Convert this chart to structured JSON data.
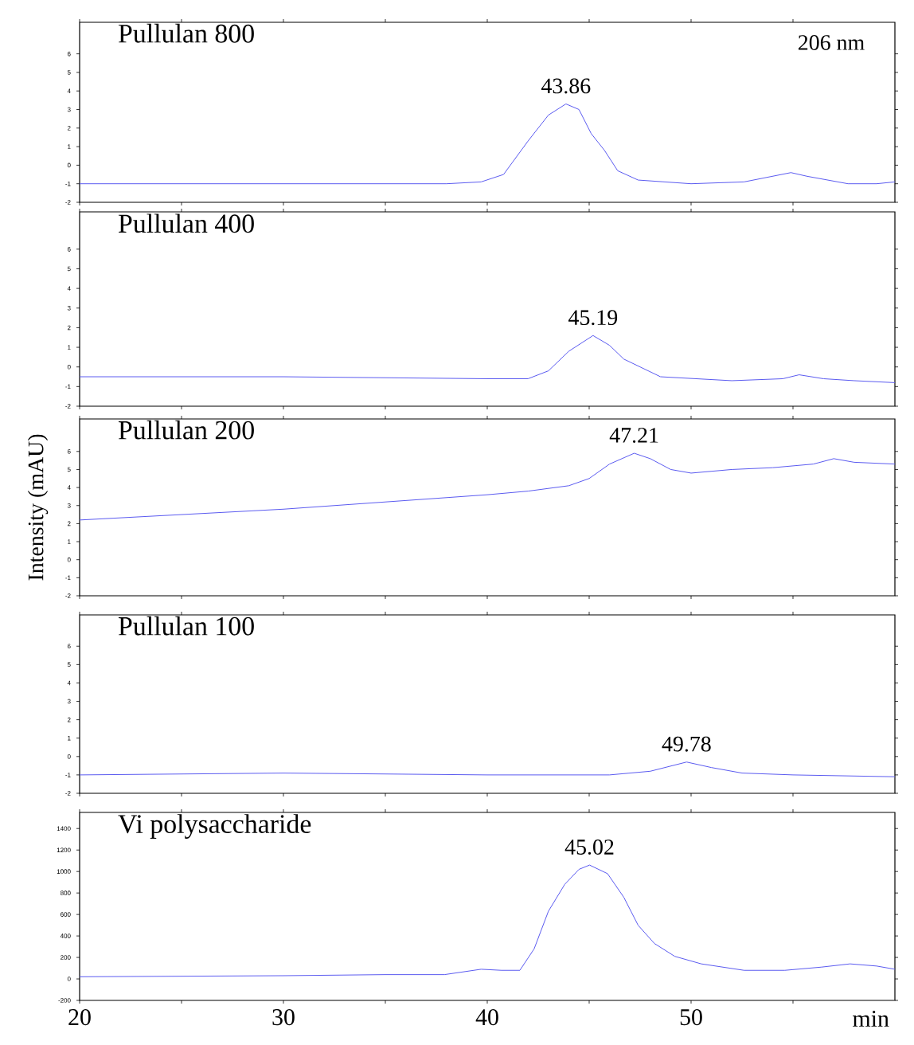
{
  "chart_data": [
    {
      "type": "line",
      "title": "Pullulan 800",
      "annotations": [
        {
          "text": "43.86",
          "x": 43.86,
          "y": 3.3
        },
        "206 nm"
      ],
      "xlim": [
        20,
        60
      ],
      "ylim": [
        -2,
        7.7
      ],
      "tick_labels": "y",
      "xticks": [
        {
          "value": 20,
          "label": null
        },
        {
          "value": 25,
          "label": null
        },
        {
          "value": 30,
          "label": null
        },
        {
          "value": 35,
          "label": null
        },
        {
          "value": 40,
          "label": null
        },
        {
          "value": 45,
          "label": null
        },
        {
          "value": 50,
          "label": null
        },
        {
          "value": 55,
          "label": null
        }
      ],
      "yticks": [
        -2,
        -1,
        0,
        1,
        2,
        3,
        4,
        5,
        6
      ],
      "x": [
        20,
        30,
        38,
        39.7,
        40.8,
        42.0,
        43.0,
        43.86,
        44.5,
        45.1,
        45.75,
        46.4,
        47.4,
        50,
        52.6,
        54.9,
        55.7,
        57.7,
        59.1,
        60
      ],
      "series": [
        {
          "color": "#5a5af0",
          "values": [
            -1.0,
            -1.0,
            -1.0,
            -0.9,
            -0.5,
            1.3,
            2.7,
            3.3,
            3.0,
            1.7,
            0.8,
            -0.3,
            -0.8,
            -1.0,
            -0.9,
            -0.4,
            -0.6,
            -1.0,
            -1.0,
            -0.9
          ]
        }
      ]
    },
    {
      "type": "line",
      "title": "Pullulan 400",
      "annotations": [
        {
          "text": "45.19",
          "x": 45.19,
          "y": 1.6
        }
      ],
      "xlim": [
        20,
        60
      ],
      "ylim": [
        -2,
        7.9
      ],
      "tick_labels": "y",
      "xticks": [
        {
          "value": 20,
          "label": null
        },
        {
          "value": 25,
          "label": null
        },
        {
          "value": 30,
          "label": null
        },
        {
          "value": 35,
          "label": null
        },
        {
          "value": 40,
          "label": null
        },
        {
          "value": 45,
          "label": null
        },
        {
          "value": 50,
          "label": null
        },
        {
          "value": 55,
          "label": null
        }
      ],
      "yticks": [
        -2,
        -1,
        0,
        1,
        2,
        3,
        4,
        5,
        6
      ],
      "x": [
        20,
        30,
        40,
        42,
        43,
        44,
        45.19,
        46,
        46.7,
        47.5,
        48.5,
        52,
        54.5,
        55.3,
        56.5,
        58,
        60
      ],
      "series": [
        {
          "color": "#5a5af0",
          "values": [
            -0.5,
            -0.5,
            -0.6,
            -0.6,
            -0.2,
            0.8,
            1.6,
            1.1,
            0.4,
            0.0,
            -0.5,
            -0.7,
            -0.6,
            -0.4,
            -0.6,
            -0.7,
            -0.8
          ]
        }
      ]
    },
    {
      "type": "line",
      "title": "Pullulan 200",
      "ylabel": "Intensity (mAU)",
      "annotations": [
        {
          "text": "47.21",
          "x": 47.21,
          "y": 5.9
        }
      ],
      "xlim": [
        20,
        60
      ],
      "ylim": [
        -2,
        7.8
      ],
      "tick_labels": "y",
      "xticks": [
        {
          "value": 20,
          "label": null
        },
        {
          "value": 25,
          "label": null
        },
        {
          "value": 30,
          "label": null
        },
        {
          "value": 35,
          "label": null
        },
        {
          "value": 40,
          "label": null
        },
        {
          "value": 45,
          "label": null
        },
        {
          "value": 50,
          "label": null
        },
        {
          "value": 55,
          "label": null
        }
      ],
      "yticks": [
        -2,
        -1,
        0,
        1,
        2,
        3,
        4,
        5,
        6
      ],
      "x": [
        20,
        25,
        30,
        35,
        40,
        42,
        44,
        45,
        46,
        47.21,
        48,
        49,
        50,
        52,
        54,
        56,
        57,
        58,
        60
      ],
      "series": [
        {
          "color": "#5a5af0",
          "values": [
            2.2,
            2.5,
            2.8,
            3.2,
            3.6,
            3.8,
            4.1,
            4.5,
            5.3,
            5.9,
            5.6,
            5.0,
            4.8,
            5.0,
            5.1,
            5.3,
            5.6,
            5.4,
            5.3
          ]
        }
      ]
    },
    {
      "type": "line",
      "title": "Pullulan 100",
      "annotations": [
        {
          "text": "49.78",
          "x": 49.78,
          "y": -0.3
        }
      ],
      "xlim": [
        20,
        60
      ],
      "ylim": [
        -2,
        7.7
      ],
      "tick_labels": "y",
      "xticks": [
        {
          "value": 20,
          "label": null
        },
        {
          "value": 25,
          "label": null
        },
        {
          "value": 30,
          "label": null
        },
        {
          "value": 35,
          "label": null
        },
        {
          "value": 40,
          "label": null
        },
        {
          "value": 45,
          "label": null
        },
        {
          "value": 50,
          "label": null
        },
        {
          "value": 55,
          "label": null
        }
      ],
      "yticks": [
        -2,
        -1,
        0,
        1,
        2,
        3,
        4,
        5,
        6
      ],
      "x": [
        20,
        30,
        40,
        46,
        48,
        49.78,
        51,
        52.5,
        55,
        60
      ],
      "series": [
        {
          "color": "#5a5af0",
          "values": [
            -1.0,
            -0.9,
            -1.0,
            -1.0,
            -0.8,
            -0.3,
            -0.6,
            -0.9,
            -1.0,
            -1.1
          ]
        }
      ]
    },
    {
      "type": "line",
      "title": "Vi polysaccharide",
      "xlabel": "min",
      "annotations": [
        {
          "text": "45.02",
          "x": 45.02,
          "y": 1060
        }
      ],
      "xlim": [
        20,
        60
      ],
      "ylim": [
        -200,
        1550
      ],
      "xticks": [
        20,
        {
          "value": 25,
          "label": null
        },
        30,
        {
          "value": 35,
          "label": null
        },
        40,
        {
          "value": 45,
          "label": null
        },
        50,
        {
          "value": 55,
          "label": null
        }
      ],
      "yticks": [
        -200,
        0,
        200,
        400,
        600,
        800,
        1000,
        1200,
        1400
      ],
      "x": [
        20,
        30,
        35,
        37.9,
        39.7,
        40.7,
        41.6,
        42.3,
        43.0,
        43.8,
        44.5,
        45.02,
        45.9,
        46.7,
        47.4,
        48.2,
        49.2,
        50.5,
        52.6,
        54.6,
        56.4,
        57.8,
        59.1,
        60
      ],
      "series": [
        {
          "color": "#5a5af0",
          "values": [
            20,
            30,
            40,
            40,
            90,
            80,
            80,
            280,
            630,
            880,
            1020,
            1060,
            980,
            760,
            500,
            330,
            210,
            140,
            80,
            80,
            110,
            140,
            120,
            90
          ]
        }
      ]
    }
  ]
}
